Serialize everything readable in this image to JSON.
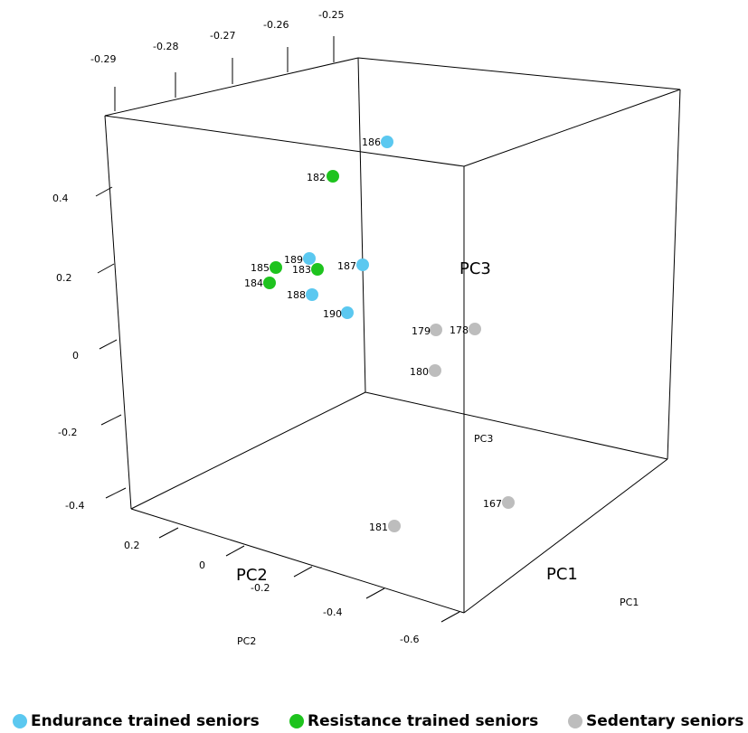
{
  "chart_data": {
    "type": "scatter",
    "dimensions": 3,
    "title": "",
    "axes": {
      "x": {
        "name": "PC1",
        "ticks": [
          "-0.29",
          "-0.28",
          "-0.27",
          "-0.26",
          "-0.25"
        ]
      },
      "y": {
        "name": "PC2",
        "ticks": [
          "0.2",
          "0",
          "-0.2",
          "-0.4",
          "-0.6"
        ]
      },
      "z": {
        "name": "PC3",
        "ticks": [
          "0.4",
          "0.2",
          "0",
          "-0.2",
          "-0.4"
        ]
      }
    },
    "series": [
      {
        "name": "Endurance trained seniors",
        "color": "#5bc8f0",
        "points": [
          {
            "label": "186"
          },
          {
            "label": "189"
          },
          {
            "label": "187"
          },
          {
            "label": "188"
          },
          {
            "label": "190"
          }
        ]
      },
      {
        "name": "Resistance trained seniors",
        "color": "#1ec31e",
        "points": [
          {
            "label": "182"
          },
          {
            "label": "185"
          },
          {
            "label": "183"
          },
          {
            "label": "184"
          }
        ]
      },
      {
        "name": "Sedentary seniors",
        "color": "#bdbdbd",
        "points": [
          {
            "label": "179"
          },
          {
            "label": "178"
          },
          {
            "label": "180"
          },
          {
            "label": "167"
          },
          {
            "label": "181"
          }
        ]
      }
    ],
    "legend_position": "bottom"
  }
}
